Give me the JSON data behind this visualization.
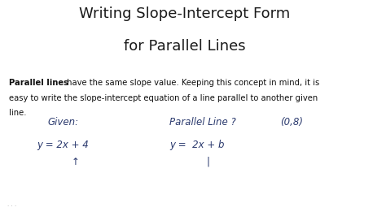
{
  "title_line1": "Writing Slope-Intercept Form",
  "title_line2": "for Parallel Lines",
  "title_fontsize": 13,
  "title_color": "#1a1a1a",
  "body_bold": "Parallel lines",
  "body_rest1": " have the same slope value. Keeping this concept in mind, it is",
  "body_line2": "easy to write the slope-intercept equation of a line parallel to another given",
  "body_line3": "line.",
  "body_fontsize": 7.2,
  "body_color": "#111111",
  "given_label": "Given:",
  "given_eq": "y = 2x + 4",
  "arrow_label": "↑",
  "parallel_label": "Parallel Line ?",
  "point_label": "(0,8)",
  "parallel_eq": "y =  2x + b",
  "parallel_tick": "|",
  "hw_fontsize": 8.5,
  "hw_color": "#2b3a6e",
  "bg_color": "#ffffff",
  "bottom_dots_color": "#aaaaaa"
}
